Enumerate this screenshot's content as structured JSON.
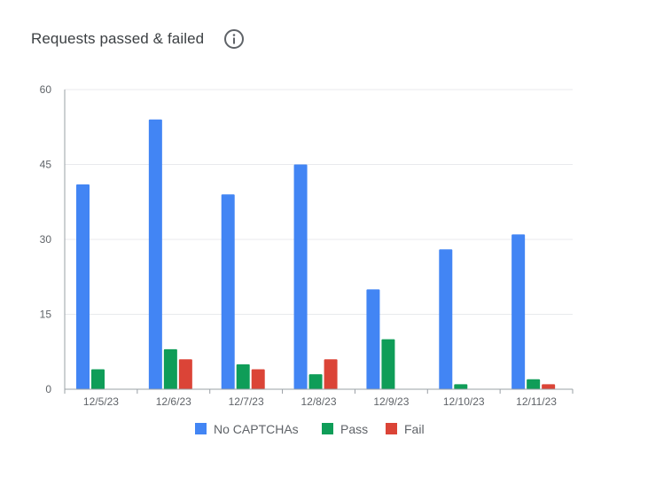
{
  "card": {
    "title": "Requests passed & failed",
    "info_icon": "info-icon"
  },
  "colors": {
    "no_captcha": "#4285f4",
    "pass": "#0f9d58",
    "fail": "#db4437",
    "grid": "#e8eaed",
    "axis": "#9aa0a6",
    "text": "#5f6368"
  },
  "chart_data": {
    "type": "bar",
    "categories": [
      "12/5/23",
      "12/6/23",
      "12/7/23",
      "12/8/23",
      "12/9/23",
      "12/10/23",
      "12/11/23"
    ],
    "series": [
      {
        "name": "No CAPTCHAs",
        "color": "#4285f4",
        "values": [
          41,
          54,
          39,
          45,
          20,
          28,
          31
        ]
      },
      {
        "name": "Pass",
        "color": "#0f9d58",
        "values": [
          4,
          8,
          5,
          3,
          10,
          1,
          2
        ]
      },
      {
        "name": "Fail",
        "color": "#db4437",
        "values": [
          0,
          6,
          4,
          6,
          0,
          0,
          1
        ]
      }
    ],
    "ylim": [
      0,
      60
    ],
    "yticks": [
      0,
      15,
      30,
      45,
      60
    ],
    "grid": true,
    "legend": "bottom"
  }
}
